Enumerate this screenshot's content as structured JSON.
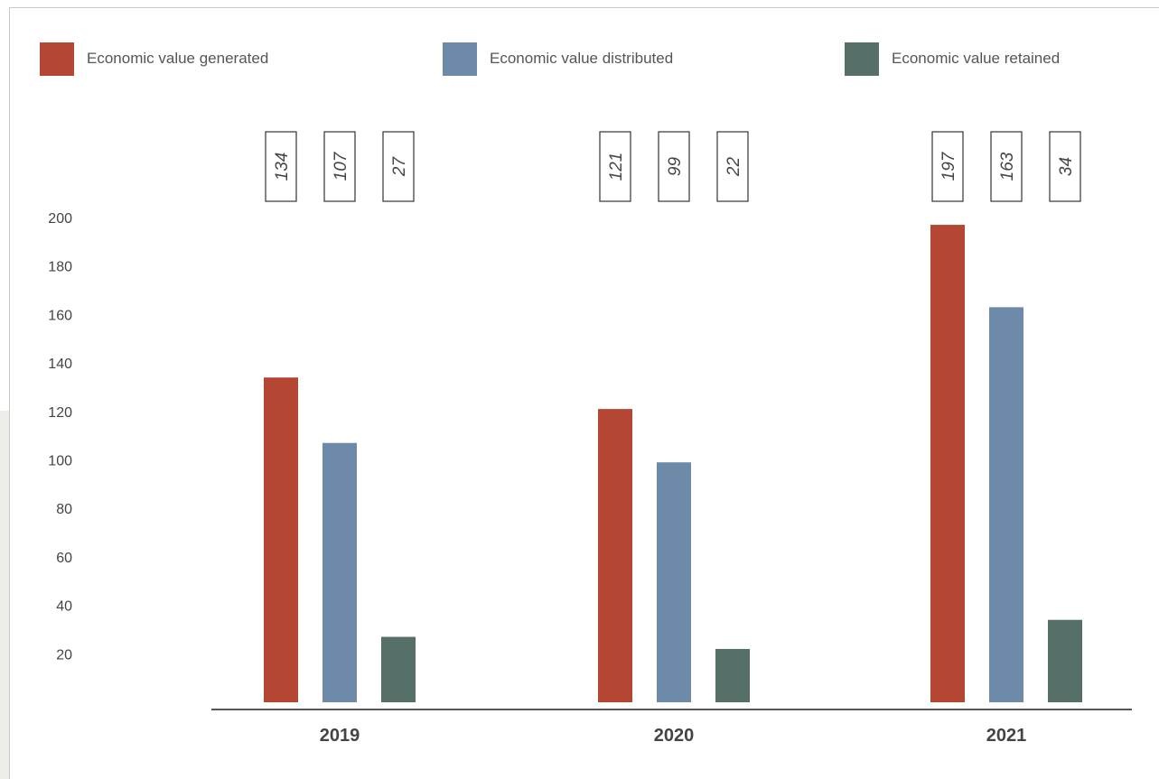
{
  "chart_data": {
    "type": "bar",
    "categories": [
      "2019",
      "2020",
      "2021"
    ],
    "series": [
      {
        "name": "Economic value generated",
        "values": [
          134,
          121,
          197
        ],
        "color": "#b44633"
      },
      {
        "name": "Economic value distributed",
        "values": [
          107,
          99,
          163
        ],
        "color": "#6d8aa8"
      },
      {
        "name": "Economic value retained",
        "values": [
          27,
          22,
          34
        ],
        "color": "#566f69"
      }
    ],
    "y_ticks": [
      20,
      40,
      60,
      80,
      100,
      120,
      140,
      160,
      180,
      200
    ],
    "ylim": [
      0,
      200
    ],
    "legend_position": "top",
    "grid": false,
    "data_labels": "rotated-boxes-above-plot"
  }
}
